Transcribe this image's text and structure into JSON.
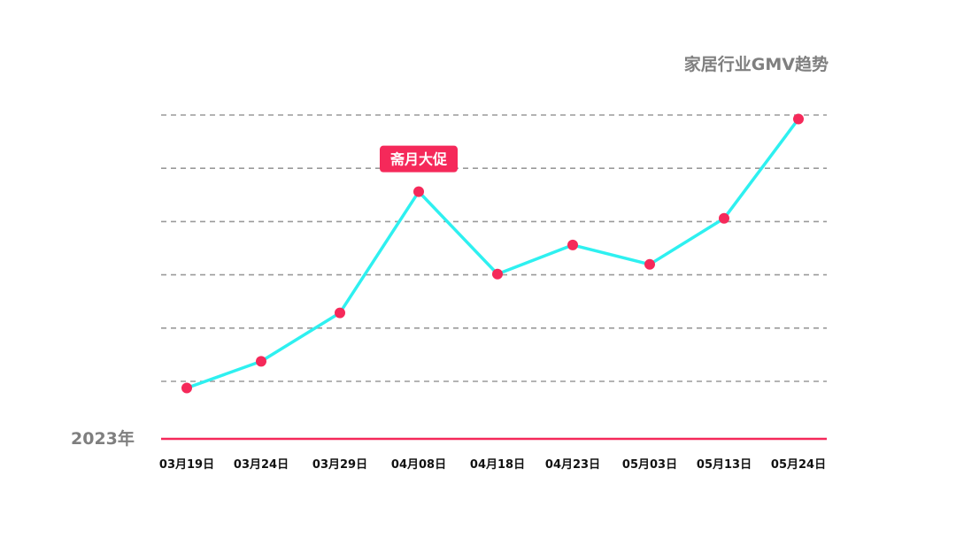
{
  "chart_data": {
    "type": "line",
    "title": "家居行业GMV趋势",
    "year_label": "2023年",
    "categories": [
      "03月19日",
      "03月24日",
      "03月29日",
      "04月08日",
      "04月18日",
      "04月23日",
      "05月03日",
      "05月13日",
      "05月24日"
    ],
    "values": [
      0.55,
      1.1,
      2.1,
      4.6,
      2.9,
      3.5,
      3.1,
      4.05,
      6.1
    ],
    "ylim": [
      -0.5,
      6.2
    ],
    "grid": true,
    "annotation": {
      "label": "斋月大促",
      "category": "04月08日"
    },
    "colors": {
      "line": "#2ef0f0",
      "point": "#f5295a",
      "baseline": "#f5295a",
      "grid": "#9a9a9a",
      "annotation_bg": "#f5295a"
    }
  }
}
